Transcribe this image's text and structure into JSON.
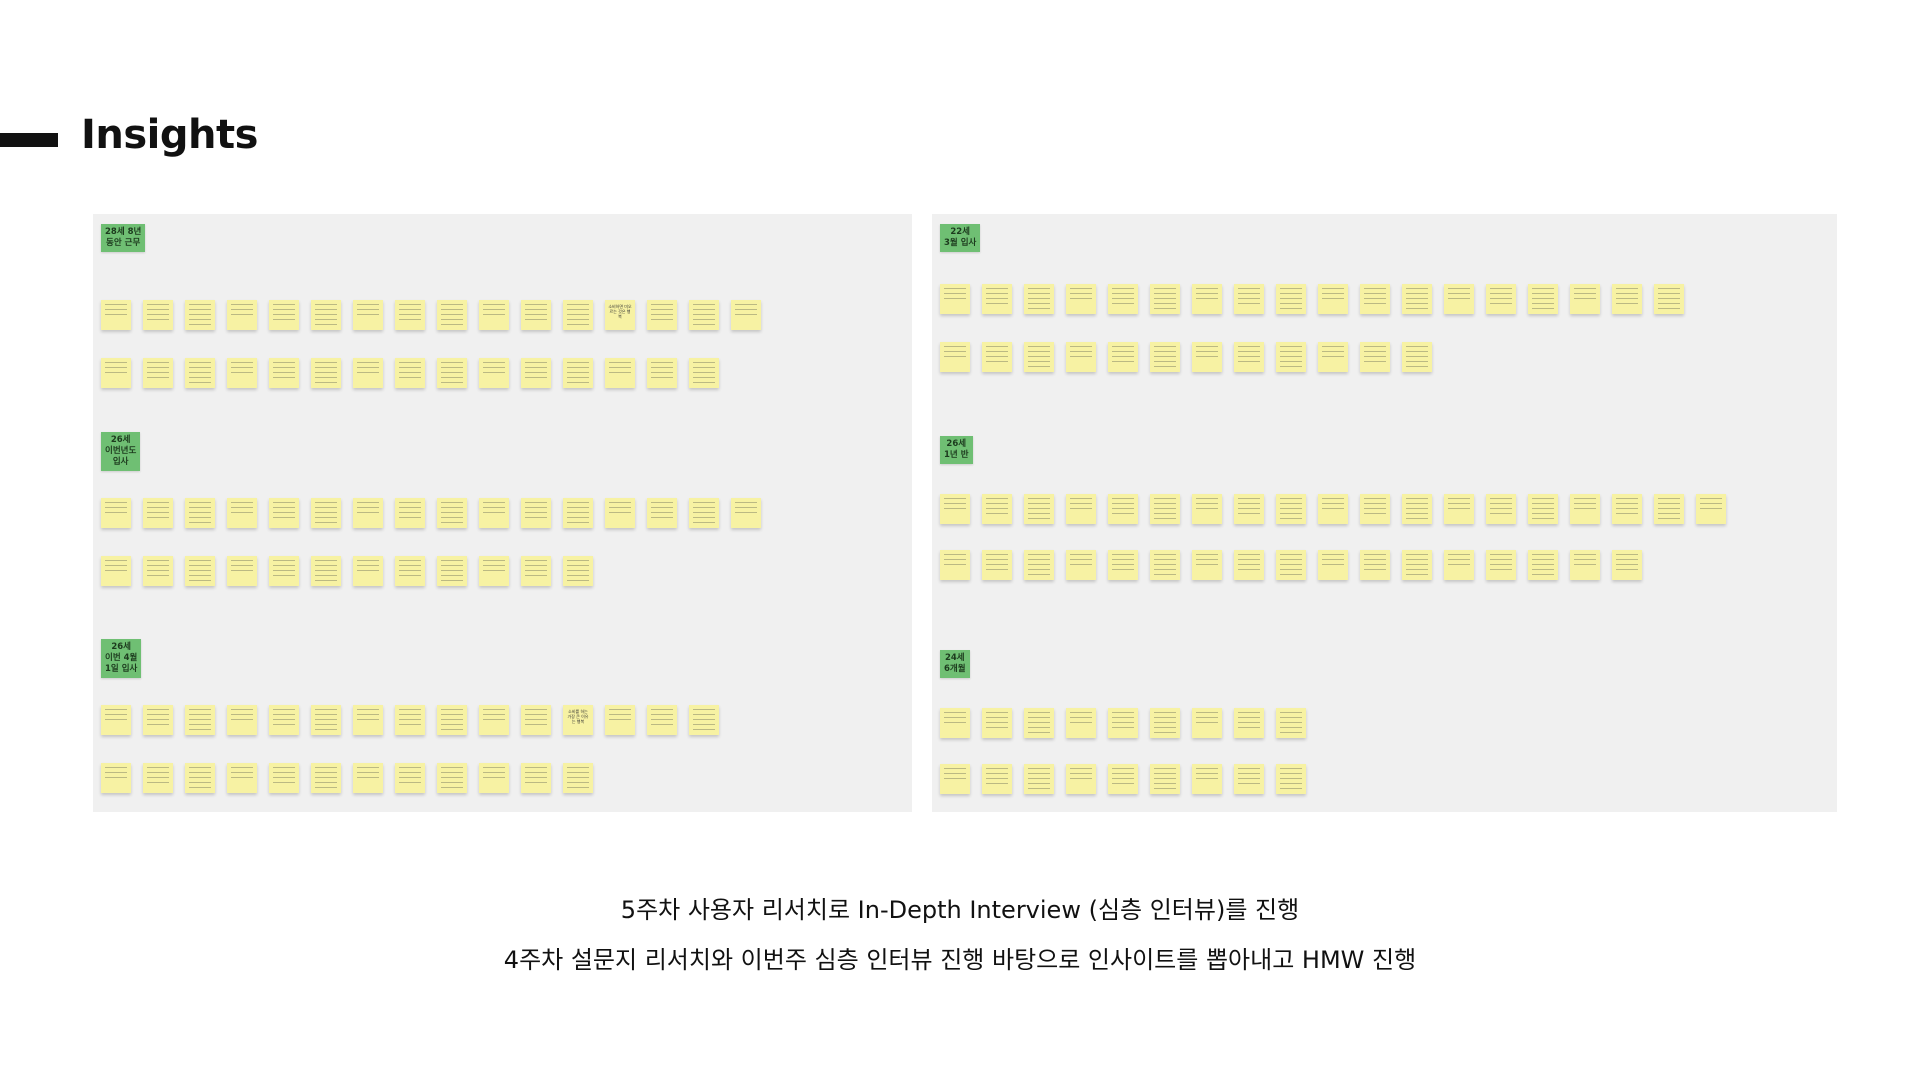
{
  "title": "Insights",
  "boards": [
    {
      "id": "left",
      "clusters": [
        {
          "tag": "28세 8년\n동안 근무",
          "rows": [
            16,
            15
          ],
          "visible_notes": [
            "소비하면 미오르는 것은 행복"
          ]
        },
        {
          "tag": "26세\n이번년도\n입사",
          "rows": [
            16,
            12
          ],
          "visible_notes": []
        },
        {
          "tag": "26세\n이번 4월\n1일 입사",
          "rows": [
            15,
            12
          ],
          "visible_notes": [
            "소비를 하는 가장 큰 이유는 행복"
          ]
        }
      ]
    },
    {
      "id": "right",
      "clusters": [
        {
          "tag": "22세\n3월 입사",
          "rows": [
            18,
            12
          ],
          "visible_notes": []
        },
        {
          "tag": "26세\n1년 반",
          "rows": [
            19,
            17
          ],
          "visible_notes": []
        },
        {
          "tag": "24세\n6개월",
          "rows": [
            9,
            9
          ],
          "visible_notes": []
        }
      ]
    }
  ],
  "captions": [
    "5주차 사용자 리서치로 In-Depth Interview (심층 인터뷰)를 진행",
    "4주차 설문지 리서치와 이번주 심층 인터뷰 진행 바탕으로 인사이트를 뽑아내고 HMW 진행"
  ],
  "colors": {
    "board": "#f0f0f0",
    "sticky": "#f7f2a3",
    "tag": "#6fbf73"
  }
}
